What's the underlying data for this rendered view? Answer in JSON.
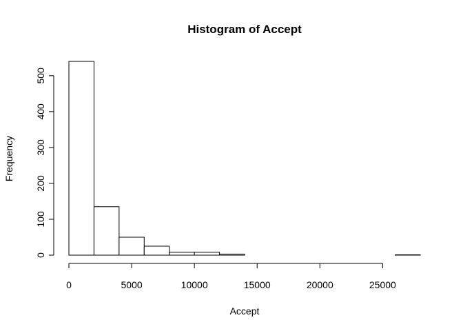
{
  "chart_data": {
    "type": "bar",
    "title": "Histogram of Accept",
    "xlabel": "Accept",
    "ylabel": "Frequency",
    "bin_edges": [
      0,
      2000,
      4000,
      6000,
      8000,
      10000,
      12000,
      14000,
      16000,
      18000,
      20000,
      22000,
      24000,
      26000,
      28000
    ],
    "values": [
      540,
      135,
      50,
      25,
      8,
      8,
      3,
      0,
      0,
      0,
      0,
      0,
      0,
      1
    ],
    "xlim": [
      0,
      28000
    ],
    "ylim": [
      0,
      540
    ],
    "x_ticks": [
      0,
      5000,
      10000,
      15000,
      20000,
      25000
    ],
    "y_ticks": [
      0,
      100,
      200,
      300,
      400,
      500
    ],
    "x_tick_labels": [
      "0",
      "5000",
      "10000",
      "15000",
      "20000",
      "25000"
    ],
    "y_tick_labels": [
      "0",
      "100",
      "200",
      "300",
      "400",
      "500"
    ],
    "grid": false,
    "legend": "none",
    "colors": {
      "bar_fill": "#ffffff",
      "bar_stroke": "#000000"
    }
  }
}
